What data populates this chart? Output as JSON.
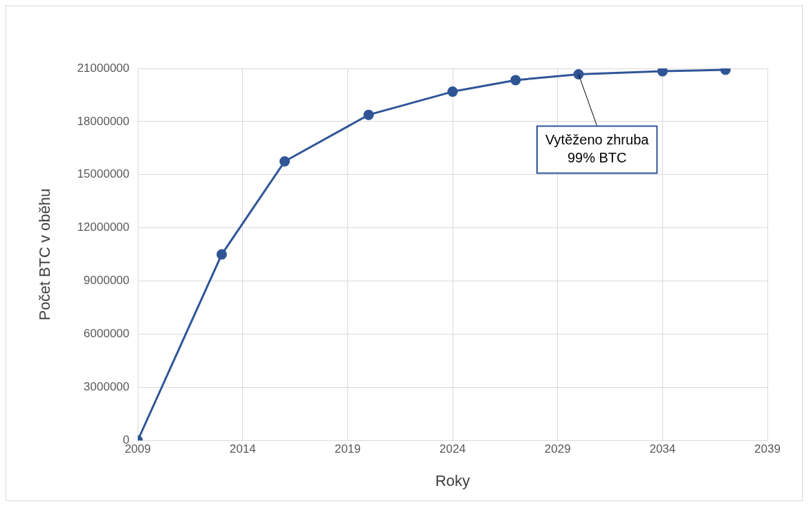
{
  "chart_data": {
    "type": "line",
    "xlabel": "Roky",
    "ylabel": "Počet BTC v oběhu",
    "x": [
      2009,
      2013,
      2016,
      2020,
      2024,
      2027,
      2030,
      2034,
      2037
    ],
    "series": [
      {
        "color": "#2f5597",
        "values": [
          0,
          10500000,
          15750000,
          18380000,
          19690000,
          20340000,
          20670000,
          20840000,
          20920000
        ]
      }
    ],
    "xlim": [
      2009,
      2039
    ],
    "xticks": [
      2009,
      2014,
      2019,
      2024,
      2029,
      2034,
      2039
    ],
    "ylim": [
      0,
      21000000
    ],
    "yticks": [
      0,
      3000000,
      6000000,
      9000000,
      12000000,
      15000000,
      18000000,
      21000000
    ],
    "grid": true,
    "legend": false,
    "marker": "circle",
    "line_style": "solid",
    "annotations": [
      {
        "text": "Vytěženo zhruba\n99% BTC",
        "x": 2030,
        "y": 20670000
      }
    ]
  }
}
